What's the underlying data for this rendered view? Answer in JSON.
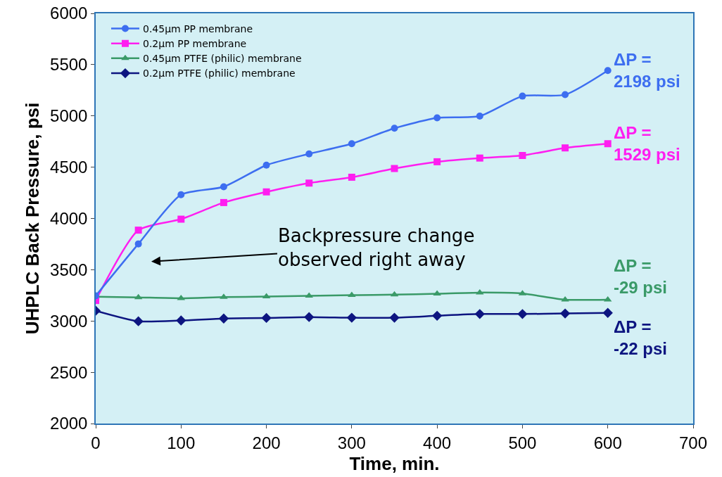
{
  "chart_data": {
    "type": "line",
    "xlabel": "Time, min.",
    "ylabel": "UHPLC Back Pressure, psi",
    "x": [
      0,
      50,
      100,
      150,
      200,
      250,
      300,
      350,
      400,
      450,
      500,
      550,
      600
    ],
    "series": [
      {
        "name": "0.45µm PP membrane",
        "color": "#3d6ef0",
        "marker": "circle",
        "values": [
          3245,
          3752,
          4232,
          4309,
          4520,
          4630,
          4729,
          4880,
          4981,
          4998,
          5193,
          5207,
          5443
        ]
      },
      {
        "name": "0.2µm PP membrane",
        "color": "#ff1ef0",
        "marker": "square",
        "values": [
          3200,
          3886,
          3993,
          4155,
          4259,
          4345,
          4402,
          4487,
          4553,
          4589,
          4614,
          4688,
          4729
        ]
      },
      {
        "name": "0.45µm PTFE (philic) membrane",
        "color": "#3a9a68",
        "marker": "triangle",
        "values": [
          3237,
          3230,
          3222,
          3233,
          3238,
          3246,
          3252,
          3257,
          3266,
          3277,
          3268,
          3208,
          3208
        ]
      },
      {
        "name": "0.2µm PTFE (philic) membrane",
        "color": "#0d1580",
        "marker": "diamond",
        "values": [
          3100,
          2997,
          3005,
          3024,
          3030,
          3038,
          3032,
          3032,
          3051,
          3068,
          3068,
          3073,
          3079
        ]
      }
    ],
    "xlim": [
      0,
      700
    ],
    "xticks": [
      0,
      100,
      200,
      300,
      400,
      500,
      600,
      700
    ],
    "ylim": [
      2000,
      6000
    ],
    "yticks": [
      2000,
      2500,
      3000,
      3500,
      4000,
      4500,
      5000,
      5500,
      6000
    ],
    "grid": false,
    "legend": "top left",
    "line_style": "solid",
    "annotations": [
      "ΔP =\n2198 psi",
      "ΔP =\n1529 psi",
      "ΔP =\n-29 psi",
      "ΔP =\n-22 psi",
      "Backpressure change\nobserved right away"
    ]
  }
}
